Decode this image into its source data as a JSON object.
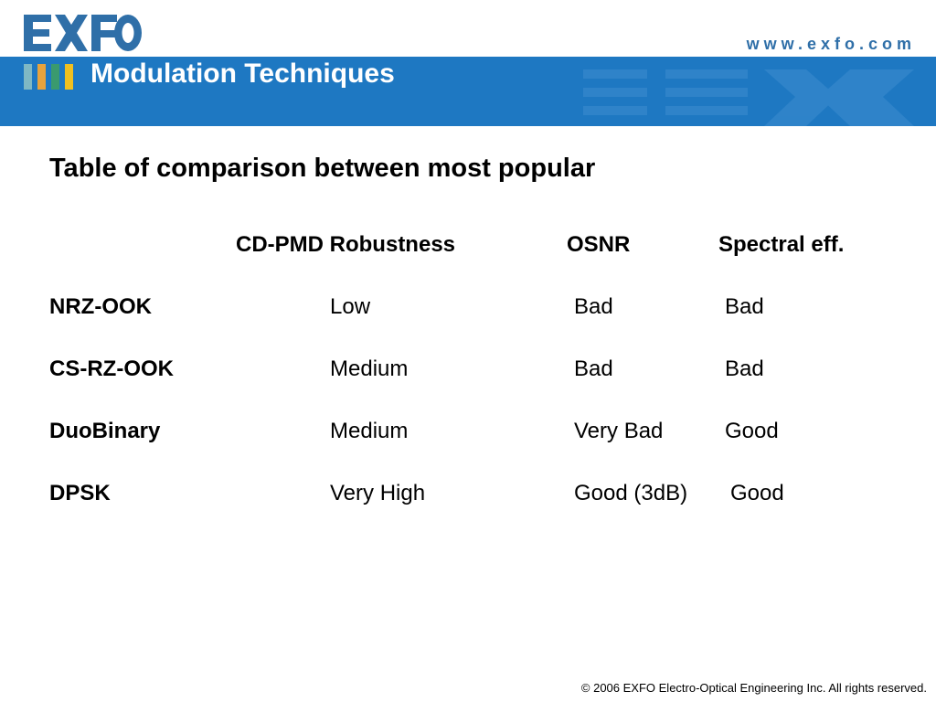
{
  "header": {
    "logo_text": "EXFO",
    "url": "www.exfo.com",
    "title": "Modulation Techniques",
    "stripe_colors": [
      "#7fb8c4",
      "#e8a33c",
      "#3a9a6e",
      "#f0c020"
    ]
  },
  "slide": {
    "heading": "Table of comparison between most popular",
    "columns": [
      "CD-PMD Robustness",
      "OSNR",
      "Spectral eff."
    ],
    "rows": [
      {
        "name": "NRZ-OOK",
        "cd_pmd": "Low",
        "osnr": "Bad",
        "spectral": "Bad"
      },
      {
        "name": "CS-RZ-OOK",
        "cd_pmd": "Medium",
        "osnr": "Bad",
        "spectral": "Bad"
      },
      {
        "name": "DuoBinary",
        "cd_pmd": "Medium",
        "osnr": "Very Bad",
        "spectral": "Good"
      },
      {
        "name": "DPSK",
        "cd_pmd": "Very High",
        "osnr": "Good (3dB)",
        "spectral": "Good"
      }
    ]
  },
  "footer": {
    "copyright": "© 2006 EXFO Electro-Optical Engineering Inc. All rights reserved."
  },
  "colors": {
    "banner": "#1e78c2",
    "logo": "#2f6fa8"
  }
}
